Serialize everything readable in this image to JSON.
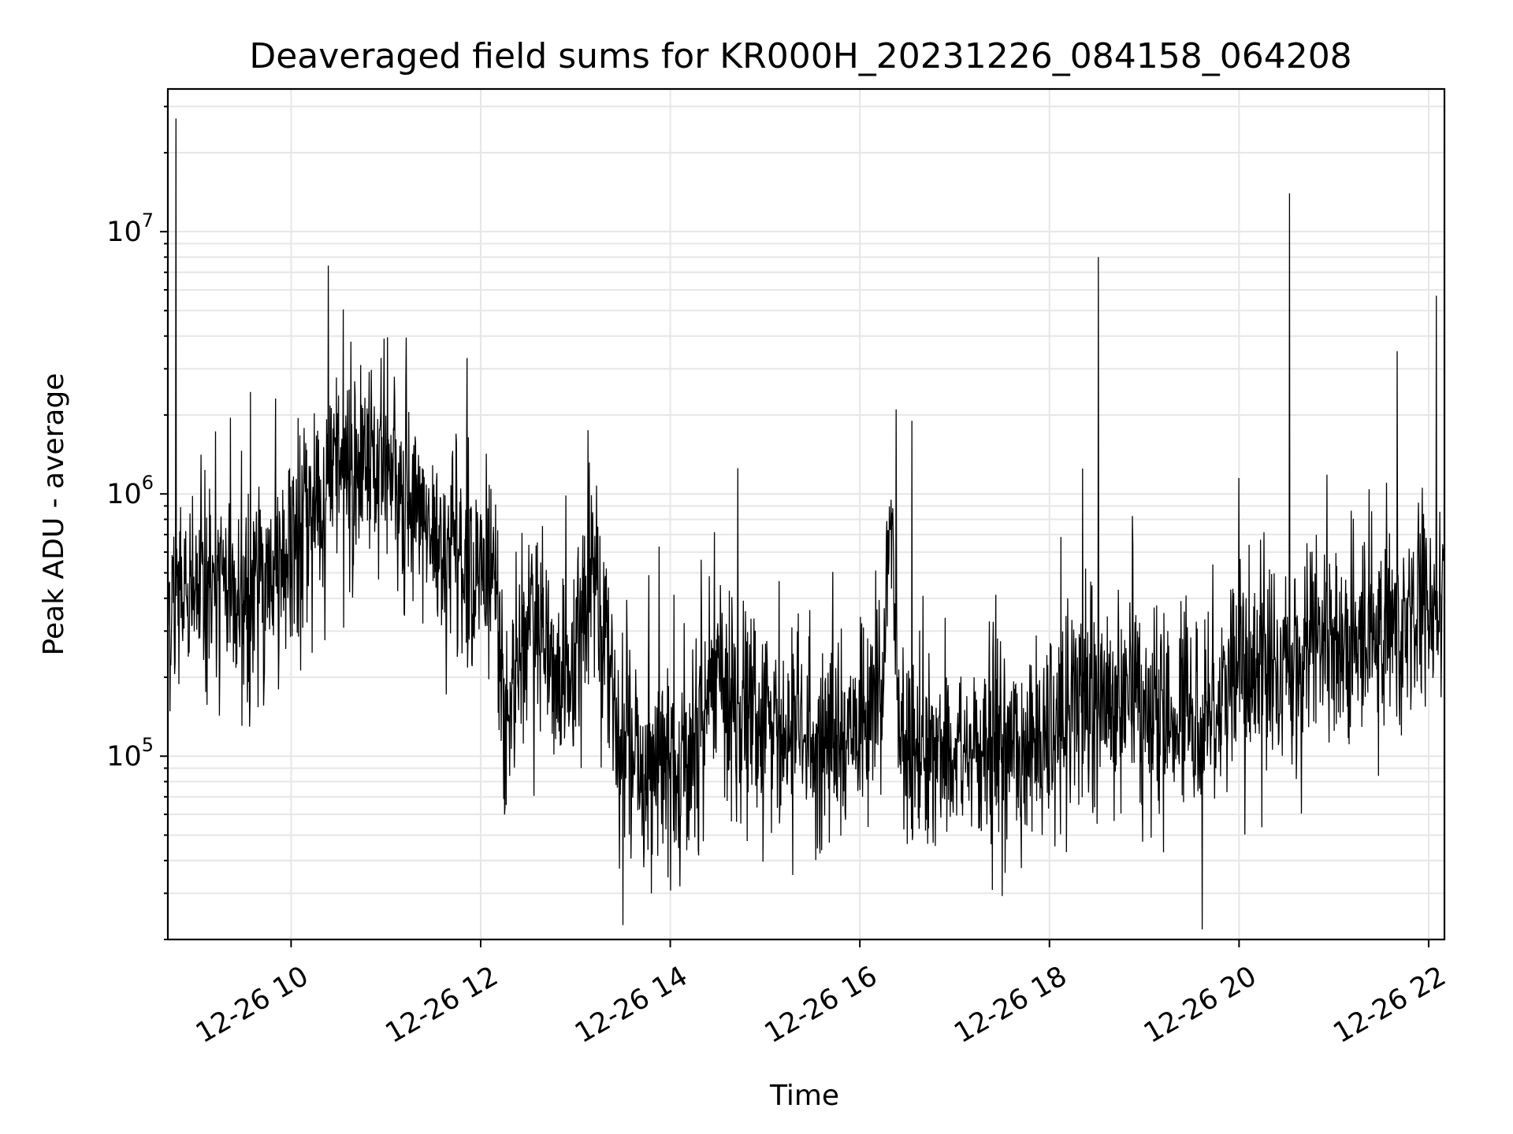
{
  "chart_data": {
    "type": "line",
    "title": "Deaveraged field sums for KR000H_20231226_084158_064208",
    "xlabel": "Time",
    "ylabel": "Peak ADU - average",
    "yscale": "log",
    "xlim": [
      "2023-12-26 08:42",
      "2023-12-26 22:10"
    ],
    "ylim": [
      20000,
      35000000
    ],
    "grid": true,
    "x_ticks": [
      "12-26 10",
      "12-26 12",
      "12-26 14",
      "12-26 16",
      "12-26 18",
      "12-26 20",
      "12-26 22"
    ],
    "y_ticks": [
      {
        "base": "10",
        "exp": "5",
        "value": 100000
      },
      {
        "base": "10",
        "exp": "6",
        "value": 1000000
      },
      {
        "base": "10",
        "exp": "7",
        "value": 10000000
      }
    ],
    "line_color": "#000000",
    "envelope": [
      {
        "t": "2023-12-26 08:42",
        "y": 380000
      },
      {
        "t": "2023-12-26 09:00",
        "y": 420000
      },
      {
        "t": "2023-12-26 09:30",
        "y": 400000
      },
      {
        "t": "2023-12-26 10:00",
        "y": 600000
      },
      {
        "t": "2023-12-26 10:30",
        "y": 1200000
      },
      {
        "t": "2023-12-26 10:50",
        "y": 1400000
      },
      {
        "t": "2023-12-26 11:15",
        "y": 800000
      },
      {
        "t": "2023-12-26 11:45",
        "y": 600000
      },
      {
        "t": "2023-12-26 12:10",
        "y": 450000
      },
      {
        "t": "2023-12-26 12:15",
        "y": 120000
      },
      {
        "t": "2023-12-26 12:30",
        "y": 350000
      },
      {
        "t": "2023-12-26 12:45",
        "y": 220000
      },
      {
        "t": "2023-12-26 13:00",
        "y": 180000
      },
      {
        "t": "2023-12-26 13:10",
        "y": 500000
      },
      {
        "t": "2023-12-26 13:25",
        "y": 150000
      },
      {
        "t": "2023-12-26 13:45",
        "y": 80000
      },
      {
        "t": "2023-12-26 14:05",
        "y": 90000
      },
      {
        "t": "2023-12-26 14:30",
        "y": 200000
      },
      {
        "t": "2023-12-26 15:00",
        "y": 120000
      },
      {
        "t": "2023-12-26 15:30",
        "y": 110000
      },
      {
        "t": "2023-12-26 16:10",
        "y": 140000
      },
      {
        "t": "2023-12-26 16:20",
        "y": 700000
      },
      {
        "t": "2023-12-26 16:25",
        "y": 120000
      },
      {
        "t": "2023-12-26 17:00",
        "y": 100000
      },
      {
        "t": "2023-12-26 17:50",
        "y": 110000
      },
      {
        "t": "2023-12-26 18:30",
        "y": 170000
      },
      {
        "t": "2023-12-26 19:30",
        "y": 140000
      },
      {
        "t": "2023-12-26 20:00",
        "y": 200000
      },
      {
        "t": "2023-12-26 20:30",
        "y": 230000
      },
      {
        "t": "2023-12-26 21:10",
        "y": 280000
      },
      {
        "t": "2023-12-26 21:40",
        "y": 300000
      },
      {
        "t": "2023-12-26 22:10",
        "y": 500000
      }
    ],
    "spikes": [
      {
        "t": "2023-12-26 08:47",
        "y": 27000000
      },
      {
        "t": "2023-12-26 18:31",
        "y": 8000000
      },
      {
        "t": "2023-12-26 20:32",
        "y": 14000000
      },
      {
        "t": "2023-12-26 22:05",
        "y": 5700000
      },
      {
        "t": "2023-12-26 21:40",
        "y": 3500000
      },
      {
        "t": "2023-12-26 10:57",
        "y": 3300000
      },
      {
        "t": "2023-12-26 16:23",
        "y": 2100000
      },
      {
        "t": "2023-12-26 16:33",
        "y": 1900000
      },
      {
        "t": "2023-12-26 13:08",
        "y": 1750000
      },
      {
        "t": "2023-12-26 18:21",
        "y": 1250000
      },
      {
        "t": "2023-12-26 20:00",
        "y": 1150000
      }
    ]
  }
}
